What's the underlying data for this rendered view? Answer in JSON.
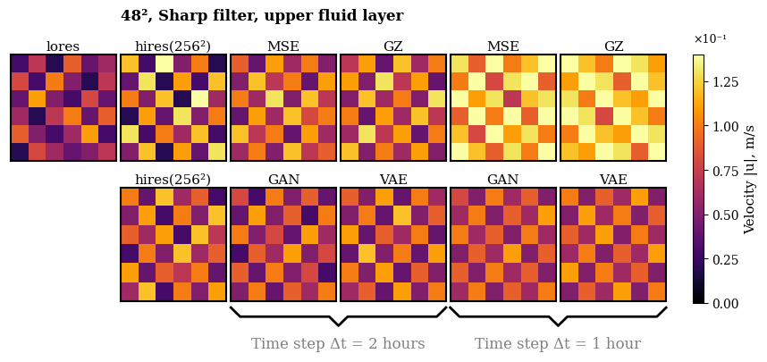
{
  "chart_data": {
    "type": "heatmap",
    "title": "48², Sharp filter, upper fluid layer",
    "rows": [
      [
        {
          "title": "lores",
          "cells": [
            [
              0.03,
              0.07,
              0.02,
              0.09,
              0.04,
              0.06
            ],
            [
              0.08,
              0.03,
              0.1,
              0.05,
              0.02,
              0.07
            ],
            [
              0.04,
              0.11,
              0.05,
              0.03,
              0.08,
              0.04
            ],
            [
              0.06,
              0.02,
              0.07,
              0.1,
              0.04,
              0.09
            ],
            [
              0.09,
              0.05,
              0.03,
              0.06,
              0.11,
              0.03
            ],
            [
              0.02,
              0.08,
              0.06,
              0.04,
              0.05,
              0.07
            ]
          ]
        },
        {
          "title": "hires(256²)",
          "cells": [
            [
              0.12,
              0.03,
              0.14,
              0.05,
              0.1,
              0.02
            ],
            [
              0.04,
              0.13,
              0.02,
              0.11,
              0.03,
              0.12
            ],
            [
              0.1,
              0.05,
              0.12,
              0.02,
              0.14,
              0.06
            ],
            [
              0.02,
              0.11,
              0.04,
              0.13,
              0.05,
              0.1
            ],
            [
              0.13,
              0.03,
              0.1,
              0.06,
              0.12,
              0.03
            ],
            [
              0.05,
              0.12,
              0.02,
              0.11,
              0.04,
              0.13
            ]
          ]
        },
        {
          "title": "MSE",
          "cells": [
            [
              0.09,
              0.04,
              0.11,
              0.06,
              0.1,
              0.05
            ],
            [
              0.05,
              0.12,
              0.07,
              0.1,
              0.04,
              0.11
            ],
            [
              0.1,
              0.06,
              0.13,
              0.05,
              0.12,
              0.07
            ],
            [
              0.04,
              0.11,
              0.06,
              0.12,
              0.08,
              0.1
            ],
            [
              0.12,
              0.07,
              0.1,
              0.04,
              0.11,
              0.06
            ],
            [
              0.06,
              0.1,
              0.05,
              0.12,
              0.07,
              0.09
            ]
          ]
        },
        {
          "title": "GZ",
          "cells": [
            [
              0.07,
              0.11,
              0.04,
              0.12,
              0.06,
              0.1
            ],
            [
              0.11,
              0.05,
              0.13,
              0.07,
              0.11,
              0.04
            ],
            [
              0.05,
              0.12,
              0.06,
              0.1,
              0.05,
              0.13
            ],
            [
              0.1,
              0.04,
              0.11,
              0.06,
              0.12,
              0.07
            ],
            [
              0.06,
              0.13,
              0.07,
              0.11,
              0.04,
              0.1
            ],
            [
              0.12,
              0.05,
              0.1,
              0.06,
              0.11,
              0.05
            ]
          ]
        },
        {
          "title": "MSE",
          "cells": [
            [
              0.13,
              0.09,
              0.14,
              0.1,
              0.12,
              0.14
            ],
            [
              0.1,
              0.14,
              0.08,
              0.13,
              0.14,
              0.09
            ],
            [
              0.14,
              0.11,
              0.13,
              0.07,
              0.12,
              0.13
            ],
            [
              0.09,
              0.14,
              0.1,
              0.14,
              0.09,
              0.14
            ],
            [
              0.12,
              0.08,
              0.14,
              0.11,
              0.13,
              0.1
            ],
            [
              0.14,
              0.12,
              0.09,
              0.13,
              0.1,
              0.14
            ]
          ]
        },
        {
          "title": "GZ",
          "cells": [
            [
              0.14,
              0.12,
              0.1,
              0.14,
              0.13,
              0.11
            ],
            [
              0.11,
              0.14,
              0.13,
              0.09,
              0.14,
              0.12
            ],
            [
              0.13,
              0.1,
              0.14,
              0.12,
              0.11,
              0.14
            ],
            [
              0.14,
              0.13,
              0.08,
              0.14,
              0.12,
              0.1
            ],
            [
              0.1,
              0.14,
              0.12,
              0.11,
              0.14,
              0.13
            ],
            [
              0.12,
              0.11,
              0.14,
              0.13,
              0.09,
              0.14
            ]
          ]
        }
      ],
      [
        {
          "title": "hires(256²)",
          "cells": [
            [
              0.1,
              0.04,
              0.12,
              0.06,
              0.09,
              0.03
            ],
            [
              0.05,
              0.11,
              0.03,
              0.1,
              0.05,
              0.12
            ],
            [
              0.09,
              0.06,
              0.11,
              0.03,
              0.12,
              0.07
            ],
            [
              0.03,
              0.1,
              0.05,
              0.12,
              0.06,
              0.09
            ],
            [
              0.11,
              0.04,
              0.09,
              0.07,
              0.1,
              0.04
            ],
            [
              0.06,
              0.12,
              0.03,
              0.1,
              0.05,
              0.11
            ]
          ]
        },
        {
          "title": "GAN",
          "cells": [
            [
              0.08,
              0.03,
              0.1,
              0.05,
              0.09,
              0.04
            ],
            [
              0.04,
              0.11,
              0.05,
              0.09,
              0.03,
              0.1
            ],
            [
              0.1,
              0.05,
              0.08,
              0.04,
              0.11,
              0.06
            ],
            [
              0.03,
              0.09,
              0.06,
              0.11,
              0.05,
              0.08
            ],
            [
              0.09,
              0.04,
              0.1,
              0.05,
              0.08,
              0.03
            ],
            [
              0.05,
              0.1,
              0.04,
              0.09,
              0.06,
              0.1
            ]
          ]
        },
        {
          "title": "VAE",
          "cells": [
            [
              0.09,
              0.05,
              0.11,
              0.04,
              0.1,
              0.06
            ],
            [
              0.05,
              0.1,
              0.04,
              0.12,
              0.05,
              0.09
            ],
            [
              0.11,
              0.04,
              0.09,
              0.06,
              0.1,
              0.04
            ],
            [
              0.04,
              0.12,
              0.05,
              0.1,
              0.04,
              0.11
            ],
            [
              0.1,
              0.05,
              0.11,
              0.04,
              0.09,
              0.05
            ],
            [
              0.06,
              0.09,
              0.04,
              0.11,
              0.05,
              0.1
            ]
          ]
        },
        {
          "title": "GAN",
          "cells": [
            [
              0.08,
              0.05,
              0.1,
              0.06,
              0.09,
              0.05
            ],
            [
              0.06,
              0.1,
              0.05,
              0.09,
              0.06,
              0.11
            ],
            [
              0.1,
              0.06,
              0.09,
              0.05,
              0.1,
              0.06
            ],
            [
              0.05,
              0.09,
              0.06,
              0.11,
              0.05,
              0.09
            ],
            [
              0.09,
              0.05,
              0.1,
              0.06,
              0.09,
              0.05
            ],
            [
              0.06,
              0.1,
              0.05,
              0.09,
              0.06,
              0.1
            ]
          ]
        },
        {
          "title": "VAE",
          "cells": [
            [
              0.1,
              0.05,
              0.09,
              0.06,
              0.11,
              0.05
            ],
            [
              0.05,
              0.11,
              0.06,
              0.1,
              0.05,
              0.09
            ],
            [
              0.09,
              0.06,
              0.11,
              0.05,
              0.1,
              0.06
            ],
            [
              0.06,
              0.1,
              0.05,
              0.09,
              0.06,
              0.11
            ],
            [
              0.11,
              0.05,
              0.1,
              0.06,
              0.09,
              0.05
            ],
            [
              0.05,
              0.09,
              0.06,
              0.11,
              0.05,
              0.1
            ]
          ]
        }
      ]
    ],
    "colorbar": {
      "label": "Velocity |u|, m/s",
      "multiplier": "×10⁻¹",
      "lim": [
        0,
        0.14
      ],
      "ticks": [
        {
          "value": 0,
          "label": "0.00"
        },
        {
          "value": 0.025,
          "label": "0.25"
        },
        {
          "value": 0.05,
          "label": "0.50"
        },
        {
          "value": 0.075,
          "label": "0.75"
        },
        {
          "value": 0.1,
          "label": "1.00"
        },
        {
          "value": 0.125,
          "label": "1.25"
        }
      ]
    },
    "annotations": [
      "Time step Δt = 2 hours",
      "Time step Δt = 1 hour"
    ]
  }
}
